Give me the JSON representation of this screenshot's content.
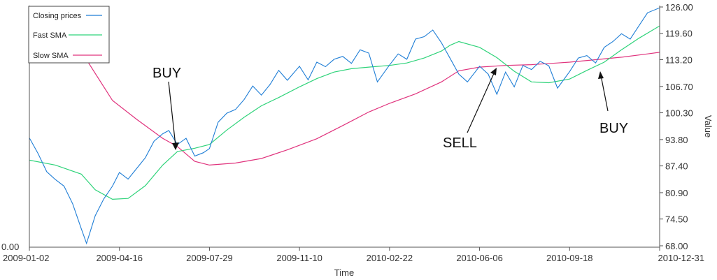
{
  "chart_data": {
    "type": "line",
    "title": "",
    "xlabel": "Time",
    "ylabel": "Value",
    "x_tick_labels": [
      "2009-01-02",
      "2009-04-16",
      "2009-07-29",
      "2009-11-10",
      "2010-02-22",
      "2010-06-06",
      "2010-09-18",
      "2010-12-31"
    ],
    "xlim": [
      "2009-01-02",
      "2010-12-31"
    ],
    "y_tick_labels": [
      "68.00",
      "74.50",
      "80.90",
      "87.40",
      "93.80",
      "100.30",
      "106.70",
      "113.20",
      "119.60",
      "126.00"
    ],
    "ylim": [
      68.0,
      126.0
    ],
    "left_axis_label": "0.00",
    "legend_position": "top-left",
    "grid": false,
    "series": [
      {
        "name": "Closing prices",
        "color": "#1f7ed6",
        "x": [
          "2009-01-02",
          "2009-01-12",
          "2009-01-22",
          "2009-02-01",
          "2009-02-11",
          "2009-02-21",
          "2009-03-03",
          "2009-03-09",
          "2009-03-19",
          "2009-03-29",
          "2009-04-08",
          "2009-04-16",
          "2009-04-26",
          "2009-05-06",
          "2009-05-16",
          "2009-05-26",
          "2009-06-05",
          "2009-06-12",
          "2009-06-22",
          "2009-07-02",
          "2009-07-12",
          "2009-07-22",
          "2009-07-29",
          "2009-08-08",
          "2009-08-18",
          "2009-08-28",
          "2009-09-07",
          "2009-09-17",
          "2009-09-27",
          "2009-10-07",
          "2009-10-17",
          "2009-10-27",
          "2009-11-10",
          "2009-11-20",
          "2009-11-30",
          "2009-12-10",
          "2009-12-20",
          "2009-12-30",
          "2010-01-09",
          "2010-01-19",
          "2010-01-29",
          "2010-02-08",
          "2010-02-22",
          "2010-03-04",
          "2010-03-14",
          "2010-03-24",
          "2010-04-03",
          "2010-04-13",
          "2010-04-23",
          "2010-05-03",
          "2010-05-13",
          "2010-05-23",
          "2010-06-06",
          "2010-06-16",
          "2010-06-26",
          "2010-07-06",
          "2010-07-16",
          "2010-07-26",
          "2010-08-05",
          "2010-08-15",
          "2010-08-25",
          "2010-09-04",
          "2010-09-18",
          "2010-09-28",
          "2010-10-08",
          "2010-10-18",
          "2010-10-28",
          "2010-11-07",
          "2010-11-17",
          "2010-11-27",
          "2010-12-07",
          "2010-12-17",
          "2010-12-31"
        ],
        "values": [
          94.2,
          90.4,
          86.0,
          84.1,
          82.5,
          78.2,
          72.1,
          68.6,
          75.3,
          79.4,
          82.5,
          85.8,
          84.2,
          86.8,
          89.4,
          93.4,
          95.2,
          96.0,
          92.6,
          94.1,
          89.8,
          90.6,
          91.6,
          98.0,
          100.2,
          101.1,
          103.5,
          106.8,
          104.6,
          107.2,
          110.6,
          108.2,
          111.6,
          108.3,
          112.6,
          111.5,
          113.3,
          114.0,
          112.3,
          115.6,
          114.8,
          107.8,
          111.9,
          114.6,
          113.3,
          118.2,
          118.8,
          120.4,
          117.3,
          113.5,
          109.7,
          107.8,
          111.6,
          109.7,
          104.8,
          110.2,
          106.6,
          111.8,
          110.8,
          112.8,
          111.7,
          106.3,
          110.3,
          113.6,
          114.2,
          112.4,
          116.2,
          117.6,
          119.5,
          118.2,
          121.4,
          124.6,
          125.8
        ]
      },
      {
        "name": "Fast SMA",
        "color": "#2fd37a",
        "x": [
          "2009-01-02",
          "2009-02-01",
          "2009-03-03",
          "2009-03-19",
          "2009-04-08",
          "2009-04-26",
          "2009-05-16",
          "2009-06-05",
          "2009-06-22",
          "2009-07-12",
          "2009-07-29",
          "2009-08-18",
          "2009-09-07",
          "2009-09-27",
          "2009-10-17",
          "2009-11-10",
          "2009-11-30",
          "2009-12-20",
          "2010-01-09",
          "2010-01-29",
          "2010-02-22",
          "2010-03-14",
          "2010-04-03",
          "2010-04-23",
          "2010-05-03",
          "2010-05-13",
          "2010-06-06",
          "2010-06-26",
          "2010-07-16",
          "2010-08-05",
          "2010-08-25",
          "2010-09-18",
          "2010-10-08",
          "2010-10-28",
          "2010-11-17",
          "2010-12-07",
          "2010-12-31"
        ],
        "values": [
          88.8,
          87.6,
          85.4,
          81.6,
          79.3,
          79.5,
          82.6,
          87.6,
          90.9,
          91.7,
          92.6,
          96.1,
          99.2,
          102.0,
          104.0,
          106.6,
          108.6,
          110.2,
          111.0,
          111.4,
          111.8,
          112.4,
          113.6,
          115.3,
          116.7,
          117.6,
          116.2,
          113.7,
          110.4,
          107.8,
          107.6,
          108.5,
          110.6,
          112.6,
          115.6,
          118.4,
          121.4
        ]
      },
      {
        "name": "Slow SMA",
        "color": "#e0337d",
        "x": [
          "2009-03-09",
          "2009-04-08",
          "2009-05-06",
          "2009-06-05",
          "2009-06-22",
          "2009-07-12",
          "2009-07-29",
          "2009-08-28",
          "2009-09-27",
          "2009-10-27",
          "2009-11-30",
          "2009-12-30",
          "2010-01-29",
          "2010-02-22",
          "2010-03-24",
          "2010-04-23",
          "2010-05-13",
          "2010-06-06",
          "2010-07-06",
          "2010-08-05",
          "2010-09-04",
          "2010-09-18",
          "2010-10-18",
          "2010-11-17",
          "2010-12-17",
          "2010-12-31"
        ],
        "values": [
          113.2,
          103.3,
          98.7,
          94.1,
          92.1,
          88.5,
          87.6,
          88.1,
          89.2,
          91.3,
          94.0,
          97.2,
          100.5,
          102.6,
          104.9,
          107.8,
          110.5,
          111.4,
          111.8,
          112.0,
          112.4,
          112.6,
          113.2,
          113.8,
          114.6,
          115.0
        ]
      }
    ],
    "annotations": [
      {
        "text": "BUY",
        "at": "2009-06-12",
        "price": 90.6,
        "direction": "down"
      },
      {
        "text": "SELL",
        "at": "2010-06-06",
        "price": 111.6,
        "direction": "up"
      },
      {
        "text": "BUY",
        "at": "2010-10-18",
        "price": 113.0,
        "direction": "up"
      }
    ]
  }
}
